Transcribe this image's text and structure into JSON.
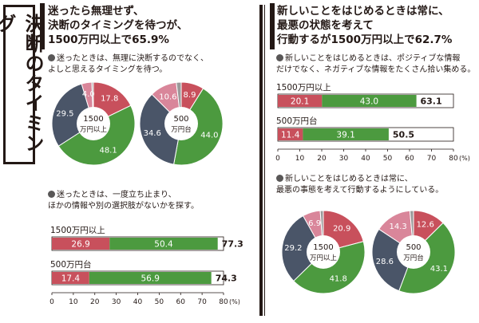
{
  "side_title": "決断のタイミング",
  "left": {
    "headline": "迷ったら無理せず、\n決断のタイミングを待つが、\n1500万円以上で65.9%",
    "note1": "迷ったときは、無理に決断するのでなく、\nよしと思えるタイミングを待つ。",
    "note2": "迷ったときは、一度立ち止まり、\nほかの情報や別の選択肢がないかを探す。"
  },
  "right": {
    "headline": "新しいことをはじめるときは常に、\n最悪の状態を考えて\n行動するが1500万円以上で62.7%",
    "note1": "新しいことをはじめるときは、ポジティブな情報\nだけでなく、ネガティブな情報をたくさん拾い集める。",
    "note2": "新しいことをはじめるときは常に、\n最悪の事態を考えて行動するようにしている。"
  },
  "colors": {
    "red": "#c8505c",
    "green": "#4c9a3f",
    "navy": "#4a5568",
    "pink": "#d9869a",
    "grey": "#9a9a9a"
  },
  "chart_data": [
    {
      "type": "pie",
      "label": "1500\n万円以上",
      "values": [
        17.8,
        48.1,
        29.5,
        4.0,
        0.6
      ],
      "slice_colors": [
        "red",
        "green",
        "navy",
        "pink",
        "grey"
      ]
    },
    {
      "type": "pie",
      "label": "500\n万円台",
      "values": [
        8.9,
        44.0,
        34.6,
        10.6,
        1.9
      ],
      "slice_colors": [
        "red",
        "green",
        "navy",
        "pink",
        "grey"
      ]
    },
    {
      "type": "bar",
      "orientation": "horizontal",
      "stacked": true,
      "categories": [
        "1500万円以上",
        "500万円台"
      ],
      "series": [
        {
          "values": [
            26.9,
            17.4
          ]
        },
        {
          "values": [
            50.4,
            56.9
          ]
        }
      ],
      "totals": [
        "77.3",
        "74.3"
      ],
      "xticks": [
        0,
        10,
        20,
        30,
        40,
        50,
        60,
        70,
        80
      ],
      "xunit": "(%)",
      "xlim": [
        0,
        80
      ]
    },
    {
      "type": "bar",
      "orientation": "horizontal",
      "stacked": true,
      "categories": [
        "1500万円以上",
        "500万円台"
      ],
      "series": [
        {
          "values": [
            20.1,
            11.4
          ]
        },
        {
          "values": [
            43.0,
            39.1
          ]
        }
      ],
      "totals": [
        "63.1",
        "50.5"
      ],
      "xticks": [
        0,
        10,
        20,
        30,
        40,
        50,
        60,
        70,
        80
      ],
      "xunit": "(%)",
      "xlim": [
        0,
        80
      ]
    },
    {
      "type": "pie",
      "label": "1500\n万円以上",
      "values": [
        20.9,
        41.8,
        29.2,
        6.9,
        1.2
      ],
      "slice_colors": [
        "red",
        "green",
        "navy",
        "pink",
        "grey"
      ]
    },
    {
      "type": "pie",
      "label": "500\n万円台",
      "values": [
        12.6,
        43.1,
        28.6,
        14.3,
        1.4
      ],
      "slice_colors": [
        "red",
        "green",
        "navy",
        "pink",
        "grey"
      ]
    }
  ]
}
